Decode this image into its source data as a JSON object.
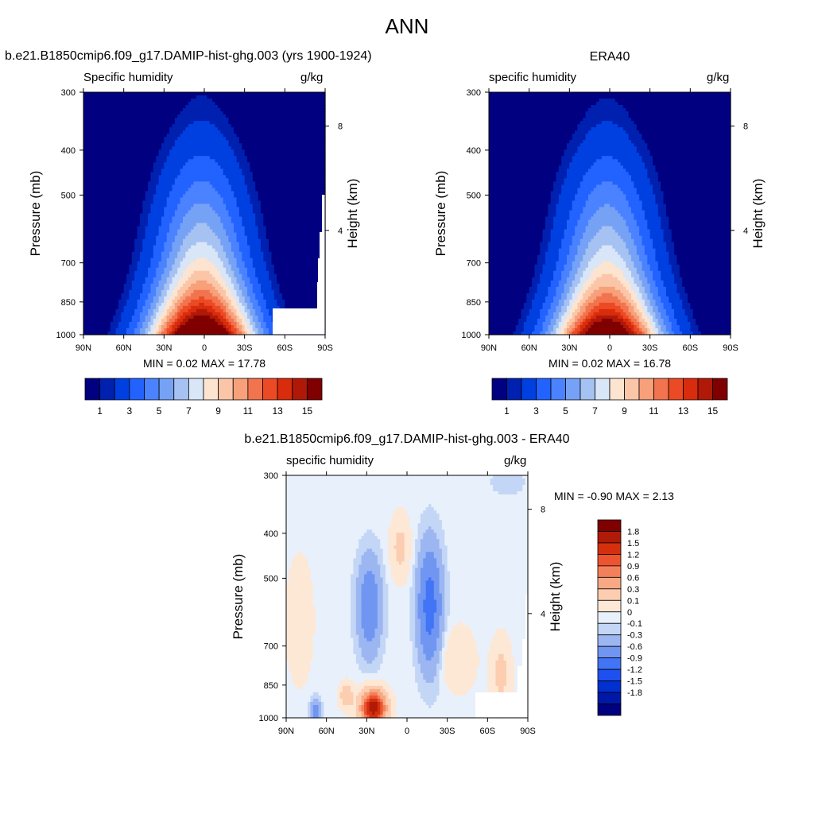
{
  "figure_title": "ANN",
  "colors": {
    "abs_levels": [
      "#000080",
      "#0020b0",
      "#0040e0",
      "#2262ff",
      "#4a82ff",
      "#76a2f6",
      "#a6c2f2",
      "#d8e6f8",
      "#fde4d0",
      "#fbc6a8",
      "#f7a07a",
      "#f2744e",
      "#ec4a24",
      "#d82c0c",
      "#b01808",
      "#800000"
    ],
    "diff_levels": [
      "#000080",
      "#0018a8",
      "#0030d0",
      "#1e50f0",
      "#4274f6",
      "#7096f2",
      "#9cb6f2",
      "#c4d6f6",
      "#e8f0fc",
      "#fde8d6",
      "#fccdb0",
      "#f8a884",
      "#f3805a",
      "#ec5430",
      "#d4300e",
      "#b01a08",
      "#800000"
    ],
    "missing": "#ffffff"
  },
  "chart_data": [
    {
      "type": "heatmap",
      "id": "model",
      "title": "b.e21.B1850cmip6.f09_g17.DAMIP-hist-ghg.003 (yrs 1900-1924)",
      "left_string": "Specific humidity",
      "right_string": "g/kg",
      "ylabel": "Pressure (mb)",
      "ylabel_right": "Height (km)",
      "x_ticks": [
        "90N",
        "60N",
        "30N",
        "0",
        "30S",
        "60S",
        "90S"
      ],
      "y_ticks": [
        "300",
        "400",
        "500",
        "700",
        "850",
        "1000"
      ],
      "y_ticks_right": [
        "8",
        "4"
      ],
      "xlim": [
        90,
        -90
      ],
      "ylim": [
        1000,
        300
      ],
      "y_scale": "log",
      "min_max": "MIN =   0.02  MAX =  17.78",
      "peak": 17.78,
      "colorbar": {
        "orientation": "horizontal",
        "labels": [
          "1",
          "3",
          "5",
          "7",
          "9",
          "11",
          "13",
          "15"
        ]
      }
    },
    {
      "type": "heatmap",
      "id": "obs",
      "title": "ERA40",
      "left_string": "specific humidity",
      "right_string": "g/kg",
      "ylabel": "Pressure (mb)",
      "ylabel_right": "Height (km)",
      "x_ticks": [
        "90N",
        "60N",
        "30N",
        "0",
        "30S",
        "60S",
        "90S"
      ],
      "y_ticks": [
        "300",
        "400",
        "500",
        "700",
        "850",
        "1000"
      ],
      "y_ticks_right": [
        "8",
        "4"
      ],
      "xlim": [
        90,
        -90
      ],
      "ylim": [
        1000,
        300
      ],
      "y_scale": "log",
      "min_max": "MIN =   0.02  MAX =  16.78",
      "peak": 16.78,
      "colorbar": {
        "orientation": "horizontal",
        "labels": [
          "1",
          "3",
          "5",
          "7",
          "9",
          "11",
          "13",
          "15"
        ]
      }
    },
    {
      "type": "heatmap",
      "id": "diff",
      "title": "b.e21.B1850cmip6.f09_g17.DAMIP-hist-ghg.003 - ERA40",
      "left_string": "specific humidity",
      "right_string": "g/kg",
      "ylabel": "Pressure (mb)",
      "ylabel_right": "Height (km)",
      "x_ticks": [
        "90N",
        "60N",
        "30N",
        "0",
        "30S",
        "60S",
        "90S"
      ],
      "y_ticks": [
        "300",
        "400",
        "500",
        "700",
        "850",
        "1000"
      ],
      "y_ticks_right": [
        "8",
        "4"
      ],
      "xlim": [
        90,
        -90
      ],
      "ylim": [
        1000,
        300
      ],
      "y_scale": "log",
      "min_max": "MIN =  -0.90  MAX =   2.13",
      "colorbar": {
        "orientation": "vertical",
        "labels": [
          "1.8",
          "1.5",
          "1.2",
          "0.9",
          "0.6",
          "0.3",
          "0.1",
          "0",
          "-0.1",
          "-0.3",
          "-0.6",
          "-0.9",
          "-1.2",
          "-1.5",
          "-1.8"
        ]
      }
    }
  ]
}
